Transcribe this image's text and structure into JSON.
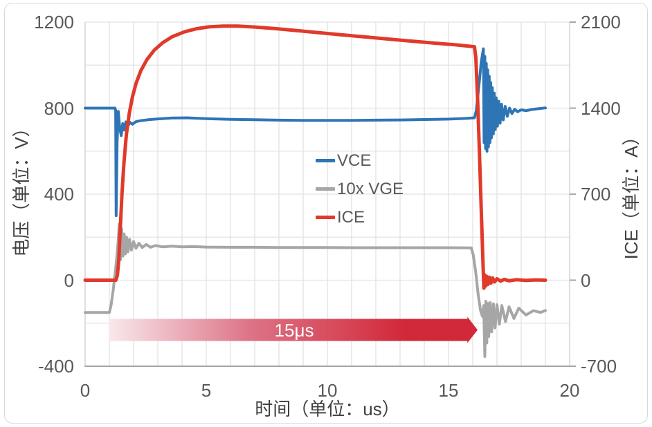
{
  "chart_data": {
    "type": "line",
    "x_axis": {
      "label": "时间（单位：us）",
      "range": [
        0,
        20
      ],
      "ticks": [
        0,
        5,
        10,
        15,
        20
      ],
      "grid_step": 1
    },
    "y_left": {
      "label": "电压（单位：V）",
      "range": [
        -400,
        1200
      ],
      "ticks": [
        1200,
        800,
        400,
        0,
        -400
      ],
      "grid_step": 200
    },
    "y_right": {
      "label": "ICE（单位：A）",
      "range": [
        -700,
        2100
      ],
      "ticks": [
        2100,
        1400,
        700,
        0,
        -700
      ]
    },
    "legend": [
      {
        "name": "VCE",
        "color": "#2E75B6"
      },
      {
        "name": "10x VGE",
        "color": "#A6A6A6"
      },
      {
        "name": "ICE",
        "color": "#E03A2B"
      }
    ],
    "series": [
      {
        "name": "VCE",
        "axis": "left",
        "color": "#2E75B6",
        "width": 4,
        "points": [
          [
            0,
            800
          ],
          [
            1.23,
            800
          ],
          [
            1.26,
            790
          ],
          [
            1.28,
            300
          ],
          [
            1.32,
            640
          ],
          [
            1.37,
            785
          ],
          [
            1.43,
            705
          ],
          [
            1.49,
            672
          ],
          [
            1.55,
            728
          ],
          [
            1.61,
            698
          ],
          [
            1.68,
            736
          ],
          [
            1.76,
            716
          ],
          [
            1.85,
            734
          ],
          [
            1.95,
            725
          ],
          [
            2.1,
            737
          ],
          [
            2.3,
            742
          ],
          [
            2.6,
            746
          ],
          [
            3,
            750
          ],
          [
            3.6,
            754
          ],
          [
            4.2,
            755
          ],
          [
            5,
            751
          ],
          [
            6,
            748
          ],
          [
            7,
            746
          ],
          [
            8,
            744
          ],
          [
            9,
            743
          ],
          [
            10,
            743
          ],
          [
            11,
            743
          ],
          [
            12,
            744
          ],
          [
            13,
            745
          ],
          [
            14,
            747
          ],
          [
            15,
            749
          ],
          [
            15.7,
            752
          ],
          [
            16.07,
            755
          ],
          [
            16.15,
            790
          ],
          [
            16.25,
            900
          ],
          [
            16.35,
            1015
          ],
          [
            16.44,
            1076
          ],
          [
            16.47,
            640
          ],
          [
            16.5,
            1040
          ],
          [
            16.53,
            612
          ],
          [
            16.56,
            1008
          ],
          [
            16.59,
            600
          ],
          [
            16.62,
            978
          ],
          [
            16.65,
            620
          ],
          [
            16.68,
            948
          ],
          [
            16.71,
            640
          ],
          [
            16.74,
            920
          ],
          [
            16.77,
            662
          ],
          [
            16.81,
            895
          ],
          [
            16.85,
            680
          ],
          [
            16.89,
            870
          ],
          [
            16.93,
            700
          ],
          [
            16.97,
            848
          ],
          [
            17.02,
            716
          ],
          [
            17.07,
            832
          ],
          [
            17.13,
            730
          ],
          [
            17.19,
            818
          ],
          [
            17.26,
            745
          ],
          [
            17.34,
            808
          ],
          [
            17.43,
            762
          ],
          [
            17.52,
            800
          ],
          [
            17.62,
            775
          ],
          [
            17.73,
            795
          ],
          [
            17.85,
            783
          ],
          [
            18,
            792
          ],
          [
            18.2,
            788
          ],
          [
            18.45,
            794
          ],
          [
            18.7,
            797
          ],
          [
            19,
            801
          ]
        ]
      },
      {
        "name": "10x VGE",
        "axis": "left",
        "color": "#A6A6A6",
        "width": 4,
        "points": [
          [
            0,
            -150
          ],
          [
            1,
            -150
          ],
          [
            1.07,
            -118
          ],
          [
            1.16,
            -45
          ],
          [
            1.25,
            45
          ],
          [
            1.31,
            110
          ],
          [
            1.36,
            175
          ],
          [
            1.41,
            262
          ],
          [
            1.46,
            95
          ],
          [
            1.51,
            238
          ],
          [
            1.56,
            112
          ],
          [
            1.61,
            215
          ],
          [
            1.66,
            122
          ],
          [
            1.71,
            200
          ],
          [
            1.77,
            132
          ],
          [
            1.83,
            190
          ],
          [
            1.91,
            140
          ],
          [
            2,
            180
          ],
          [
            2.1,
            148
          ],
          [
            2.22,
            172
          ],
          [
            2.36,
            152
          ],
          [
            2.52,
            166
          ],
          [
            2.7,
            153
          ],
          [
            2.9,
            161
          ],
          [
            3.2,
            155
          ],
          [
            3.6,
            158
          ],
          [
            4,
            155
          ],
          [
            4.5,
            156
          ],
          [
            5,
            154
          ],
          [
            6,
            153
          ],
          [
            7,
            153
          ],
          [
            8,
            152
          ],
          [
            9,
            152
          ],
          [
            10,
            152
          ],
          [
            11,
            151
          ],
          [
            12,
            151
          ],
          [
            13,
            151
          ],
          [
            14,
            151
          ],
          [
            15,
            151
          ],
          [
            15.94,
            150
          ],
          [
            16.02,
            118
          ],
          [
            16.12,
            40
          ],
          [
            16.22,
            -62
          ],
          [
            16.32,
            -140
          ],
          [
            16.4,
            -168
          ],
          [
            16.45,
            -118
          ],
          [
            16.5,
            -355
          ],
          [
            16.54,
            -98
          ],
          [
            16.58,
            -292
          ],
          [
            16.62,
            -108
          ],
          [
            16.66,
            -262
          ],
          [
            16.72,
            -104
          ],
          [
            16.78,
            -240
          ],
          [
            16.85,
            -110
          ],
          [
            16.92,
            -222
          ],
          [
            17,
            -114
          ],
          [
            17.1,
            -205
          ],
          [
            17.2,
            -118
          ],
          [
            17.35,
            -192
          ],
          [
            17.5,
            -124
          ],
          [
            17.7,
            -178
          ],
          [
            17.9,
            -130
          ],
          [
            18.2,
            -162
          ],
          [
            18.5,
            -142
          ],
          [
            18.8,
            -150
          ],
          [
            19,
            -141
          ]
        ]
      },
      {
        "name": "ICE",
        "axis": "right",
        "color": "#E03A2B",
        "width": 5,
        "points": [
          [
            0,
            0
          ],
          [
            1.27,
            0
          ],
          [
            1.33,
            40
          ],
          [
            1.39,
            160
          ],
          [
            1.45,
            420
          ],
          [
            1.52,
            700
          ],
          [
            1.6,
            950
          ],
          [
            1.7,
            1180
          ],
          [
            1.82,
            1355
          ],
          [
            1.95,
            1490
          ],
          [
            2.1,
            1600
          ],
          [
            2.3,
            1705
          ],
          [
            2.55,
            1795
          ],
          [
            2.85,
            1872
          ],
          [
            3.2,
            1932
          ],
          [
            3.6,
            1982
          ],
          [
            4.1,
            2021
          ],
          [
            4.6,
            2046
          ],
          [
            5.1,
            2061
          ],
          [
            5.7,
            2068
          ],
          [
            6.3,
            2068
          ],
          [
            7,
            2060
          ],
          [
            7.8,
            2048
          ],
          [
            8.7,
            2032
          ],
          [
            9.6,
            2015
          ],
          [
            10.5,
            1998
          ],
          [
            11.5,
            1980
          ],
          [
            12.5,
            1962
          ],
          [
            13.5,
            1945
          ],
          [
            14.5,
            1928
          ],
          [
            15.3,
            1915
          ],
          [
            16.07,
            1900
          ],
          [
            16.13,
            1810
          ],
          [
            16.2,
            1480
          ],
          [
            16.28,
            1020
          ],
          [
            16.36,
            520
          ],
          [
            16.43,
            110
          ],
          [
            16.46,
            -65
          ],
          [
            16.5,
            42
          ],
          [
            16.54,
            -46
          ],
          [
            16.58,
            30
          ],
          [
            16.63,
            -34
          ],
          [
            16.69,
            24
          ],
          [
            16.75,
            -24
          ],
          [
            16.82,
            18
          ],
          [
            16.9,
            -14
          ],
          [
            17,
            11
          ],
          [
            17.15,
            -8
          ],
          [
            17.3,
            7
          ],
          [
            17.5,
            -5
          ],
          [
            17.8,
            4
          ],
          [
            18.2,
            -2
          ],
          [
            18.6,
            2
          ],
          [
            19,
            0
          ]
        ]
      }
    ],
    "annotation": {
      "label": "15μs",
      "x_start": 0.97,
      "x_body_end": 15.78,
      "x_tip": 16.2,
      "color_start": "#F9E9EC",
      "color_mid": "#DD7487",
      "color_end": "#D2293A",
      "text_color": "#FFFFFF"
    },
    "layout": {
      "grid_color": "#E2E2E2",
      "axis_side_color": "#D6D6D6",
      "axis_bottom_color": "#A6A6A6",
      "tick_mark_color": "#A6A6A6",
      "legend_position": "center",
      "grid": true
    }
  }
}
